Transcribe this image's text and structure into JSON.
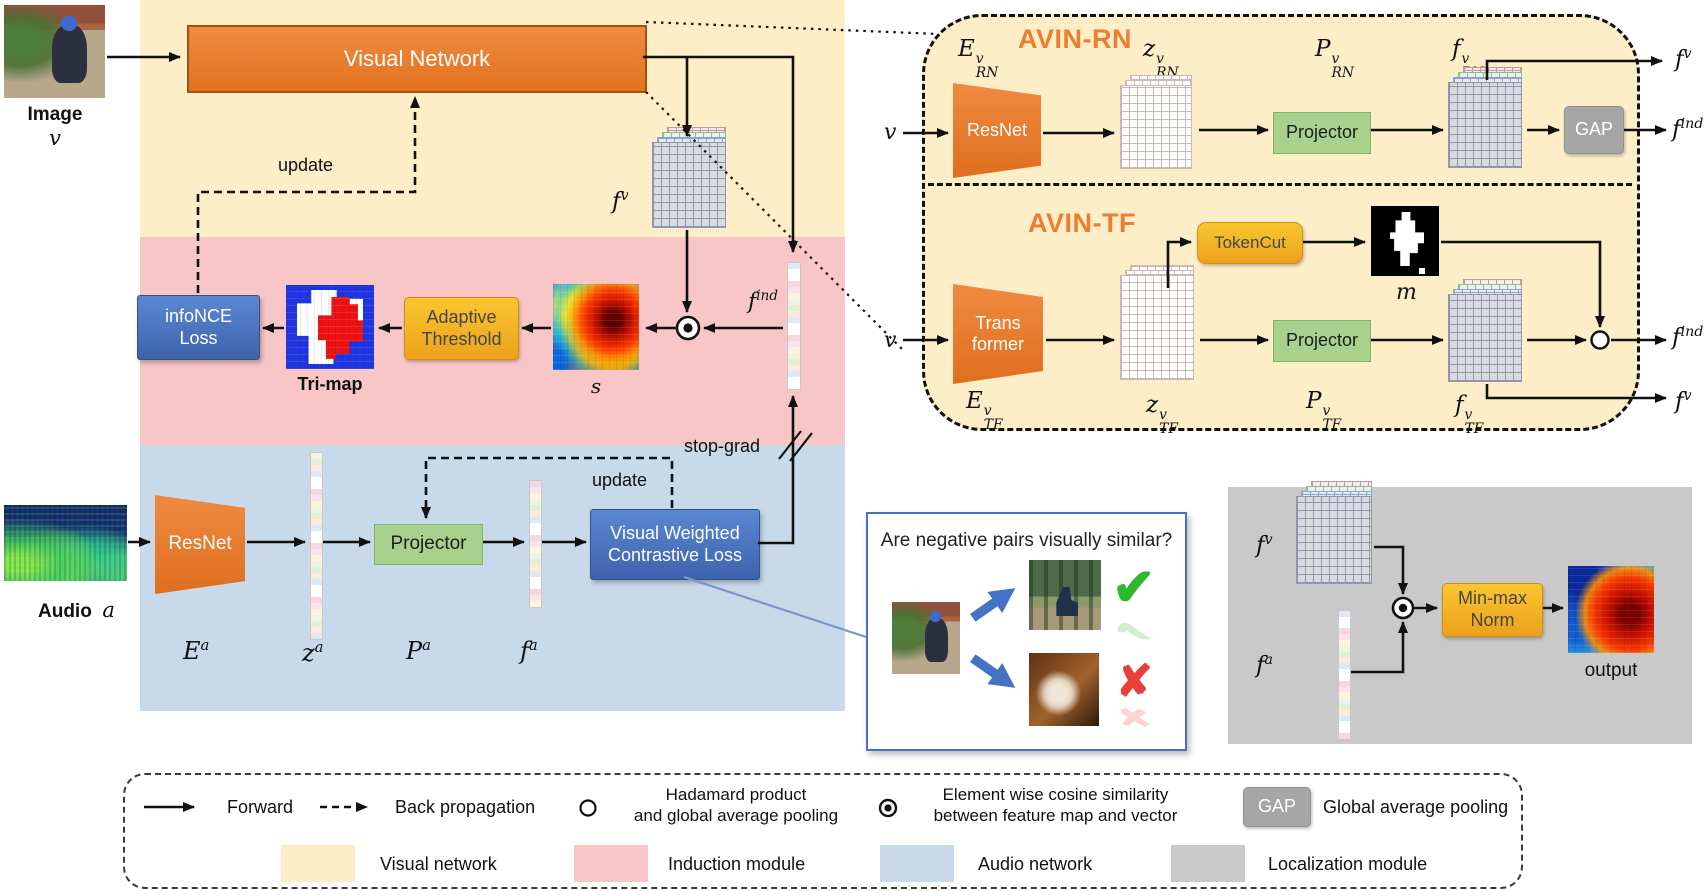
{
  "colors": {
    "visual_network_bg": "#fdeec8",
    "induction_bg": "#f8c6c6",
    "audio_bg": "#c8daea",
    "localization_bg": "#c9c9c9",
    "encoder_orange": "#e87e31",
    "loss_blue": "#4472c4",
    "gold": "#f2b02a",
    "projector_green": "#a9d18e",
    "gap_gray": "#a6a6a6",
    "avin_title_orange": "#ed7d31",
    "check_green": "#2eb82e",
    "cross_red": "#e8413c"
  },
  "left": {
    "image_label": "Image",
    "image_var": "v",
    "visual_network_label": "Visual Network",
    "update_label": "update",
    "fv": {
      "base": "f",
      "sup": "v"
    },
    "find": {
      "base": "f",
      "sup": "ind"
    },
    "infonce_line1": "infoNCE",
    "infonce_line2": "Loss",
    "trimap_label": "Tri-map",
    "adaptive_line1": "Adaptive",
    "adaptive_line2": "Threshold",
    "s_label": "s",
    "stop_grad_label": "stop-grad",
    "audio_label": "Audio",
    "audio_var": "a",
    "resnet_label": "ResNet",
    "projector_label": "Projector",
    "vwcl_line1": "Visual Weighted",
    "vwcl_line2": "Contrastive Loss",
    "update_label2": "update",
    "Ea": {
      "base": "E",
      "sup": "a"
    },
    "za": {
      "base": "z",
      "sup": "a"
    },
    "Pa": {
      "base": "P",
      "sup": "a"
    },
    "fa": {
      "base": "f",
      "sup": "a"
    }
  },
  "avin_rn": {
    "title": "AVIN-RN",
    "v_label": "v",
    "encoder_label": "ResNet",
    "projector_label": "Projector",
    "gap_label": "GAP",
    "E": {
      "base": "E",
      "sup": "v",
      "sub": "RN"
    },
    "z": {
      "base": "z",
      "sup": "v",
      "sub": "RN"
    },
    "P": {
      "base": "P",
      "sup": "v",
      "sub": "RN"
    },
    "f": {
      "base": "f",
      "sup": "v",
      "sub": "RN"
    },
    "out_fv": {
      "base": "f",
      "sup": "v"
    },
    "out_find": {
      "base": "f",
      "sup": "ind"
    }
  },
  "avin_tf": {
    "title": "AVIN-TF",
    "v_label": "v",
    "encoder_line1": "Trans",
    "encoder_line2": "former",
    "tokencut_label": "TokenCut",
    "m_label": "m",
    "projector_label": "Projector",
    "E": {
      "base": "E",
      "sup": "v",
      "sub": "TF"
    },
    "z": {
      "base": "z",
      "sup": "v",
      "sub": "TF"
    },
    "P": {
      "base": "P",
      "sup": "v",
      "sub": "TF"
    },
    "f": {
      "base": "f",
      "sup": "v",
      "sub": "TF"
    },
    "out_find": {
      "base": "f",
      "sup": "ind"
    },
    "out_fv": {
      "base": "f",
      "sup": "v"
    }
  },
  "question_box": {
    "title": "Are negative pairs visually similar?",
    "check_icon": "✔",
    "cross_icon": "✘"
  },
  "localization": {
    "fv": {
      "base": "f",
      "sup": "v"
    },
    "fa": {
      "base": "f",
      "sup": "a"
    },
    "minmax_line1": "Min-max",
    "minmax_line2": "Norm",
    "output_label": "output"
  },
  "legend": {
    "forward": "Forward",
    "back_propagation": "Back propagation",
    "hadamard_line1": "Hadamard product",
    "hadamard_line2": "and global average pooling",
    "cosine_line1": "Element wise cosine similarity",
    "cosine_line2": "between feature map and vector",
    "gap_chip": "GAP",
    "gap_label": "Global average pooling",
    "swatches": [
      {
        "label": "Visual network",
        "color": "#fdeec8"
      },
      {
        "label": "Induction module",
        "color": "#f8c6c6"
      },
      {
        "label": "Audio network",
        "color": "#c8daea"
      },
      {
        "label": "Localization module",
        "color": "#c9c9c9"
      }
    ]
  }
}
